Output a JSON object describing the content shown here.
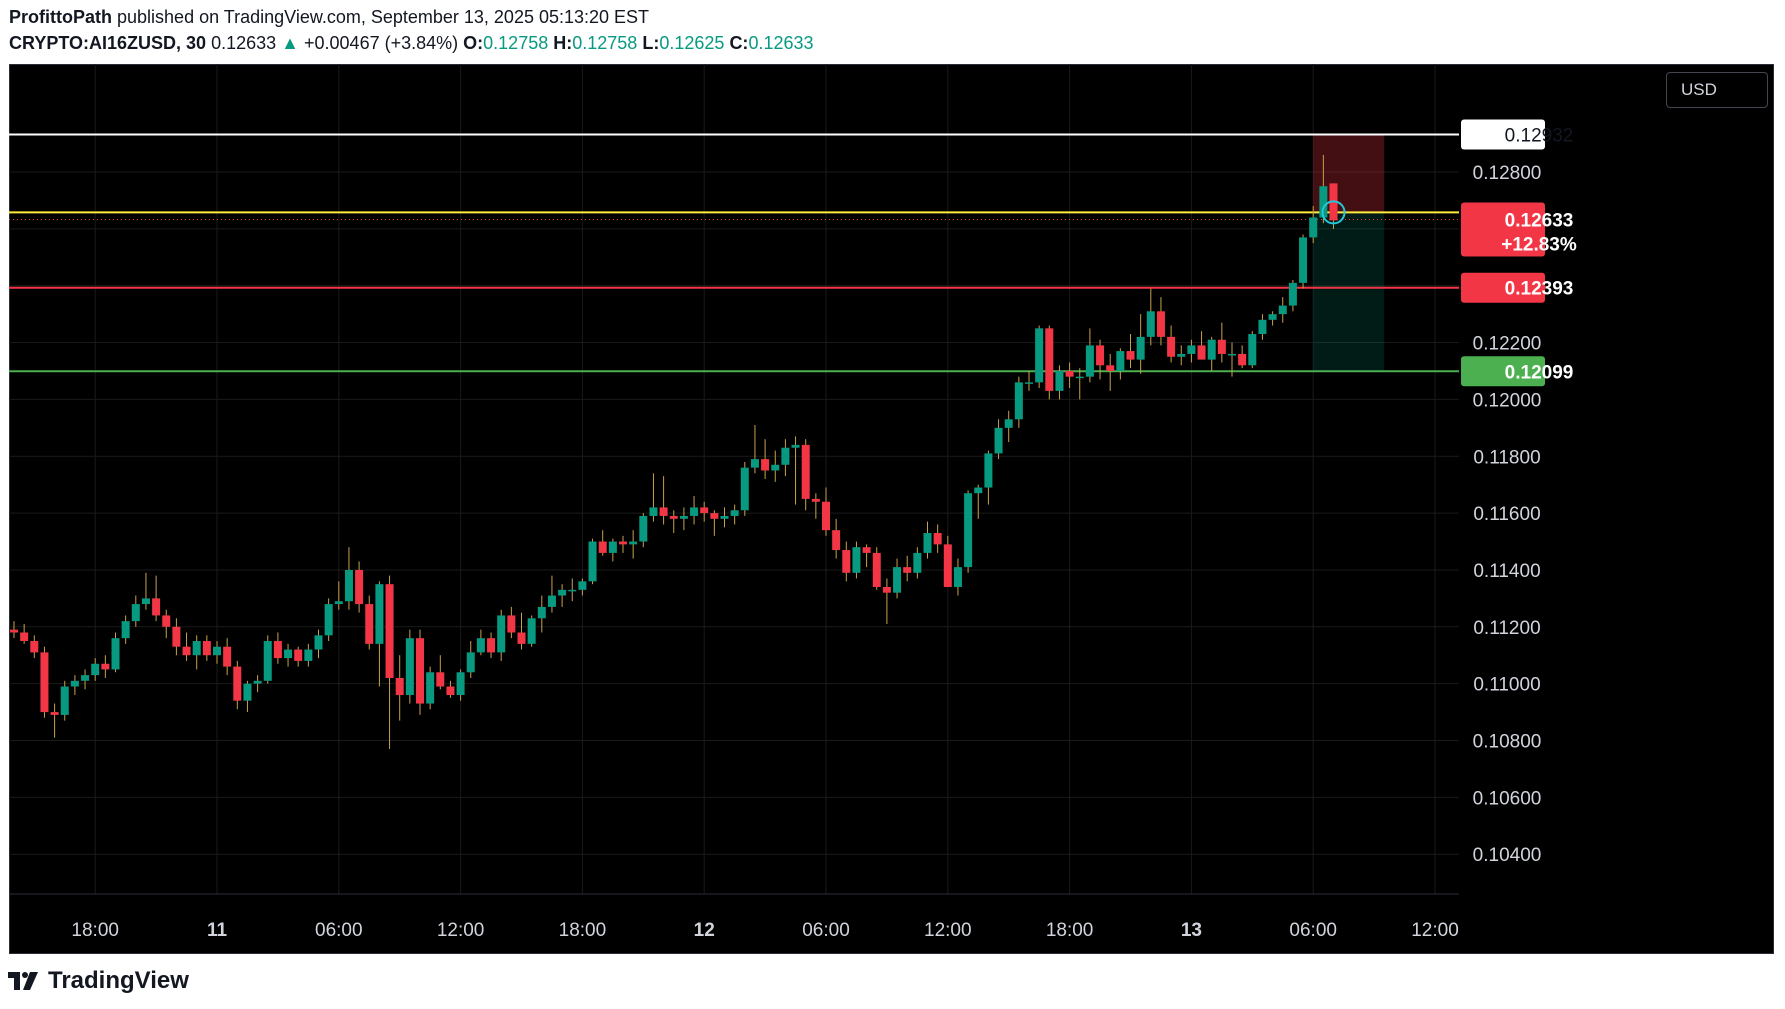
{
  "header": {
    "author": "ProfittoPath",
    "published_text": "published on TradingView.com, September 13, 2025 05:13:20 EST",
    "symbol": "CRYPTO:AI16ZUSD, 30",
    "last": "0.12633",
    "arrow": "▲",
    "change": "+0.00467 (+3.84%)",
    "o_label": "O:",
    "o_value": "0.12758",
    "h_label": "H:",
    "h_value": "0.12758",
    "l_label": "L:",
    "l_value": "0.12625",
    "c_label": "C:",
    "c_value": "0.12633"
  },
  "currency_button": "USD",
  "footer": {
    "brand": "TradingView",
    "logo_icon": "tradingview-logo-icon"
  },
  "price_tags": {
    "white": "0.12932",
    "current": "0.12633",
    "current_pct": "+12.83%",
    "red": "0.12393",
    "green": "0.12099"
  },
  "colors": {
    "background": "#000000",
    "up": "#089981",
    "down": "#f23645",
    "white_line": "#ffffff",
    "yellow_line": "#ffeb3b",
    "red_line": "#f23645",
    "green_line": "#4caf50"
  },
  "chart_data": {
    "type": "candlestick",
    "timeframe": "30",
    "y_ticks": [
      0.128,
      0.126,
      0.124,
      0.122,
      0.12,
      0.118,
      0.116,
      0.114,
      0.112,
      0.11,
      0.108,
      0.106,
      0.104
    ],
    "y_tick_labels": [
      "0.12800",
      "0.12600",
      "0.12400",
      "0.12200",
      "0.12000",
      "0.11800",
      "0.11600",
      "0.11400",
      "0.11200",
      "0.11000",
      "0.10800",
      "0.10600",
      "0.10400"
    ],
    "ylim": [
      0.1026,
      0.1318
    ],
    "x_ticks": [
      {
        "label": "18:00",
        "bar": 8
      },
      {
        "label": "11",
        "bar": 20
      },
      {
        "label": "06:00",
        "bar": 32
      },
      {
        "label": "12:00",
        "bar": 44
      },
      {
        "label": "18:00",
        "bar": 56
      },
      {
        "label": "12",
        "bar": 68
      },
      {
        "label": "06:00",
        "bar": 80
      },
      {
        "label": "12:00",
        "bar": 92
      },
      {
        "label": "18:00",
        "bar": 104
      },
      {
        "label": "13",
        "bar": 116
      },
      {
        "label": "06:00",
        "bar": 128
      },
      {
        "label": "12:00",
        "bar": 140
      }
    ],
    "horizontal_lines": [
      {
        "price": 0.12932,
        "color": "#ffffff"
      },
      {
        "price": 0.12658,
        "color": "#ffeb3b"
      },
      {
        "price": 0.12393,
        "color": "#f23645"
      },
      {
        "price": 0.12099,
        "color": "#4caf50"
      }
    ],
    "position_tool": {
      "entry": 0.12658,
      "stop": 0.12932,
      "target": 0.12099,
      "start_bar": 128,
      "end_bar": 135
    },
    "ohlc": [
      [
        0.1119,
        0.1122,
        0.1116,
        0.1118
      ],
      [
        0.1118,
        0.1121,
        0.1114,
        0.1115
      ],
      [
        0.1115,
        0.1117,
        0.1109,
        0.1111
      ],
      [
        0.1111,
        0.1113,
        0.1088,
        0.109
      ],
      [
        0.109,
        0.1093,
        0.1081,
        0.1089
      ],
      [
        0.1089,
        0.1101,
        0.1087,
        0.1099
      ],
      [
        0.1099,
        0.1103,
        0.1096,
        0.1101
      ],
      [
        0.1101,
        0.1105,
        0.1098,
        0.1103
      ],
      [
        0.1103,
        0.1109,
        0.1101,
        0.1107
      ],
      [
        0.1107,
        0.111,
        0.1102,
        0.1105
      ],
      [
        0.1105,
        0.1118,
        0.1104,
        0.1116
      ],
      [
        0.1116,
        0.1124,
        0.1114,
        0.1122
      ],
      [
        0.1122,
        0.1131,
        0.112,
        0.1128
      ],
      [
        0.1128,
        0.1139,
        0.1126,
        0.113
      ],
      [
        0.113,
        0.1138,
        0.1122,
        0.1124
      ],
      [
        0.1124,
        0.1126,
        0.1116,
        0.112
      ],
      [
        0.112,
        0.1123,
        0.111,
        0.1113
      ],
      [
        0.1113,
        0.1118,
        0.1108,
        0.111
      ],
      [
        0.111,
        0.1117,
        0.1105,
        0.1115
      ],
      [
        0.1115,
        0.1117,
        0.1108,
        0.111
      ],
      [
        0.111,
        0.1115,
        0.1107,
        0.1113
      ],
      [
        0.1113,
        0.1116,
        0.1103,
        0.1106
      ],
      [
        0.1106,
        0.1108,
        0.1091,
        0.1094
      ],
      [
        0.1094,
        0.1101,
        0.109,
        0.11
      ],
      [
        0.11,
        0.1103,
        0.1097,
        0.1101
      ],
      [
        0.1101,
        0.1117,
        0.11,
        0.1115
      ],
      [
        0.1115,
        0.1118,
        0.1107,
        0.1109
      ],
      [
        0.1109,
        0.1114,
        0.1106,
        0.1112
      ],
      [
        0.1112,
        0.1113,
        0.1106,
        0.1108
      ],
      [
        0.1108,
        0.1114,
        0.1106,
        0.1112
      ],
      [
        0.1112,
        0.1119,
        0.1109,
        0.1117
      ],
      [
        0.1117,
        0.113,
        0.1115,
        0.1128
      ],
      [
        0.1128,
        0.1136,
        0.1126,
        0.1129
      ],
      [
        0.1129,
        0.1148,
        0.1126,
        0.114
      ],
      [
        0.114,
        0.1143,
        0.1125,
        0.1128
      ],
      [
        0.1128,
        0.1131,
        0.1112,
        0.1114
      ],
      [
        0.1114,
        0.1136,
        0.1099,
        0.1135
      ],
      [
        0.1135,
        0.1138,
        0.1077,
        0.1102
      ],
      [
        0.1102,
        0.111,
        0.1087,
        0.1096
      ],
      [
        0.1096,
        0.1119,
        0.1093,
        0.1116
      ],
      [
        0.1116,
        0.1119,
        0.1089,
        0.1093
      ],
      [
        0.1093,
        0.1106,
        0.1091,
        0.1104
      ],
      [
        0.1104,
        0.111,
        0.1098,
        0.1099
      ],
      [
        0.1099,
        0.1101,
        0.1095,
        0.1096
      ],
      [
        0.1096,
        0.1105,
        0.1094,
        0.1104
      ],
      [
        0.1104,
        0.1115,
        0.1102,
        0.1111
      ],
      [
        0.1111,
        0.1119,
        0.111,
        0.1116
      ],
      [
        0.1116,
        0.1118,
        0.1109,
        0.1111
      ],
      [
        0.1111,
        0.1126,
        0.1108,
        0.1124
      ],
      [
        0.1124,
        0.1127,
        0.1116,
        0.1118
      ],
      [
        0.1118,
        0.1125,
        0.1112,
        0.1114
      ],
      [
        0.1114,
        0.1124,
        0.1113,
        0.1123
      ],
      [
        0.1123,
        0.1131,
        0.1118,
        0.1127
      ],
      [
        0.1127,
        0.1138,
        0.1125,
        0.1131
      ],
      [
        0.1131,
        0.1135,
        0.1127,
        0.1133
      ],
      [
        0.1133,
        0.1137,
        0.1129,
        0.1133
      ],
      [
        0.1133,
        0.1137,
        0.1131,
        0.1136
      ],
      [
        0.1136,
        0.1151,
        0.1135,
        0.115
      ],
      [
        0.115,
        0.1154,
        0.1145,
        0.1146
      ],
      [
        0.1146,
        0.1151,
        0.1143,
        0.115
      ],
      [
        0.115,
        0.1152,
        0.1146,
        0.1149
      ],
      [
        0.1149,
        0.1154,
        0.1144,
        0.115
      ],
      [
        0.115,
        0.116,
        0.1148,
        0.1159
      ],
      [
        0.1159,
        0.1174,
        0.1157,
        0.1162
      ],
      [
        0.1162,
        0.1173,
        0.1156,
        0.1159
      ],
      [
        0.1159,
        0.1161,
        0.1153,
        0.1158
      ],
      [
        0.1158,
        0.1162,
        0.1154,
        0.1159
      ],
      [
        0.1159,
        0.1166,
        0.1156,
        0.1162
      ],
      [
        0.1162,
        0.1164,
        0.1157,
        0.116
      ],
      [
        0.116,
        0.1161,
        0.1152,
        0.1158
      ],
      [
        0.1158,
        0.1162,
        0.1155,
        0.1159
      ],
      [
        0.1159,
        0.1163,
        0.1156,
        0.1161
      ],
      [
        0.1161,
        0.1178,
        0.1159,
        0.1176
      ],
      [
        0.1176,
        0.1191,
        0.1174,
        0.1179
      ],
      [
        0.1179,
        0.1186,
        0.1172,
        0.1175
      ],
      [
        0.1175,
        0.1182,
        0.1171,
        0.1177
      ],
      [
        0.1177,
        0.1186,
        0.1173,
        0.1183
      ],
      [
        0.1183,
        0.1187,
        0.1163,
        0.1184
      ],
      [
        0.1184,
        0.1186,
        0.1161,
        0.1165
      ],
      [
        0.1165,
        0.1167,
        0.1158,
        0.1164
      ],
      [
        0.1164,
        0.1169,
        0.1152,
        0.1154
      ],
      [
        0.1154,
        0.1158,
        0.1144,
        0.1147
      ],
      [
        0.1147,
        0.115,
        0.1136,
        0.1139
      ],
      [
        0.1139,
        0.115,
        0.1137,
        0.1148
      ],
      [
        0.1148,
        0.1149,
        0.1141,
        0.1146
      ],
      [
        0.1146,
        0.1148,
        0.1133,
        0.1134
      ],
      [
        0.1134,
        0.1137,
        0.1121,
        0.1132
      ],
      [
        0.1132,
        0.1144,
        0.113,
        0.1141
      ],
      [
        0.1141,
        0.1145,
        0.1136,
        0.1139
      ],
      [
        0.1139,
        0.1148,
        0.1137,
        0.1146
      ],
      [
        0.1146,
        0.1157,
        0.1144,
        0.1153
      ],
      [
        0.1153,
        0.1156,
        0.1146,
        0.1149
      ],
      [
        0.1149,
        0.1152,
        0.1134,
        0.1134
      ],
      [
        0.1134,
        0.1144,
        0.1131,
        0.1141
      ],
      [
        0.1141,
        0.1168,
        0.1139,
        0.1167
      ],
      [
        0.1167,
        0.117,
        0.1158,
        0.1169
      ],
      [
        0.1169,
        0.1182,
        0.1163,
        0.1181
      ],
      [
        0.1181,
        0.1193,
        0.1179,
        0.119
      ],
      [
        0.119,
        0.1196,
        0.1185,
        0.1193
      ],
      [
        0.1193,
        0.1208,
        0.119,
        0.1206
      ],
      [
        0.1206,
        0.121,
        0.1203,
        0.1206
      ],
      [
        0.1206,
        0.1226,
        0.1204,
        0.1225
      ],
      [
        0.1225,
        0.1226,
        0.12,
        0.1203
      ],
      [
        0.1203,
        0.1212,
        0.12,
        0.121
      ],
      [
        0.121,
        0.1213,
        0.1204,
        0.1208
      ],
      [
        0.1208,
        0.1211,
        0.12,
        0.1208
      ],
      [
        0.1208,
        0.1225,
        0.1206,
        0.1219
      ],
      [
        0.1219,
        0.1221,
        0.1207,
        0.1212
      ],
      [
        0.1212,
        0.1216,
        0.1203,
        0.121
      ],
      [
        0.121,
        0.1218,
        0.1207,
        0.1217
      ],
      [
        0.1217,
        0.1223,
        0.1211,
        0.1214
      ],
      [
        0.1214,
        0.123,
        0.1209,
        0.1222
      ],
      [
        0.1222,
        0.1239,
        0.1219,
        0.1231
      ],
      [
        0.1231,
        0.1236,
        0.1219,
        0.1222
      ],
      [
        0.1222,
        0.1226,
        0.1213,
        0.1215
      ],
      [
        0.1215,
        0.1219,
        0.1212,
        0.1216
      ],
      [
        0.1216,
        0.1221,
        0.1213,
        0.1219
      ],
      [
        0.1219,
        0.1224,
        0.1214,
        0.1214
      ],
      [
        0.1214,
        0.1222,
        0.121,
        0.1221
      ],
      [
        0.1221,
        0.1227,
        0.1213,
        0.1216
      ],
      [
        0.1216,
        0.122,
        0.1208,
        0.1216
      ],
      [
        0.1216,
        0.1219,
        0.1211,
        0.1212
      ],
      [
        0.1212,
        0.1224,
        0.1211,
        0.1223
      ],
      [
        0.1223,
        0.123,
        0.1221,
        0.1228
      ],
      [
        0.1228,
        0.1231,
        0.1226,
        0.123
      ],
      [
        0.123,
        0.1236,
        0.1227,
        0.1233
      ],
      [
        0.1233,
        0.1242,
        0.1231,
        0.1241
      ],
      [
        0.1241,
        0.1258,
        0.1239,
        0.1257
      ],
      [
        0.1257,
        0.1268,
        0.1255,
        0.1264
      ],
      [
        0.1264,
        0.1286,
        0.1262,
        0.1275
      ],
      [
        0.1276,
        0.1276,
        0.126,
        0.1263
      ]
    ]
  }
}
